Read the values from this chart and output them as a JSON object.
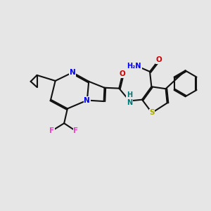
{
  "bg_color": "#e6e6e6",
  "bond_color": "#111111",
  "bw": 1.5,
  "dbo": 0.055,
  "colors": {
    "N": "#0000ee",
    "O": "#cc0000",
    "S": "#aaaa00",
    "F": "#ee44cc",
    "NH": "#007777",
    "C": "#111111"
  },
  "fs": 7.5,
  "figsize": [
    3.0,
    3.0
  ],
  "dpi": 100
}
